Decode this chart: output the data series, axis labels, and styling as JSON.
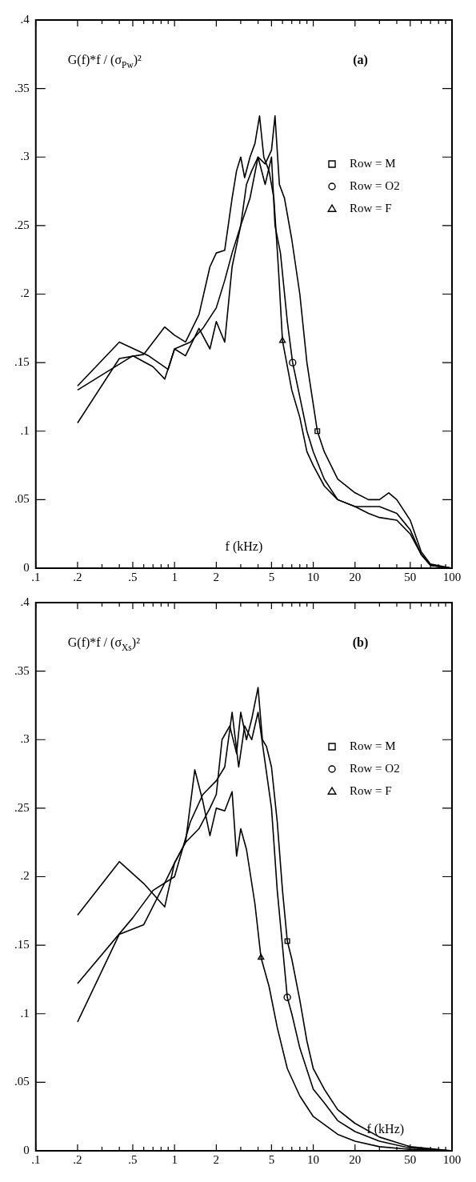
{
  "chart_data": [
    {
      "type": "line",
      "title": "(a)",
      "ylabel": "G(f)*f / (σ$_{Pw}$)²",
      "xlabel": "f (kHz)",
      "log": "x",
      "grid": false,
      "legend": "top right",
      "xlim": [
        0.1,
        100
      ],
      "ylim": [
        0,
        0.4
      ],
      "xticks": [
        {
          "value": 0.1,
          "label": ".1"
        },
        {
          "value": 0.2,
          "label": ".2"
        },
        {
          "value": 0.3,
          "label": null
        },
        {
          "value": 0.4,
          "label": null
        },
        {
          "value": 0.5,
          "label": ".5"
        },
        {
          "value": 0.6,
          "label": null
        },
        {
          "value": 0.7,
          "label": null
        },
        {
          "value": 0.8,
          "label": null
        },
        {
          "value": 0.9,
          "label": null
        },
        1,
        2,
        {
          "value": 3,
          "label": null
        },
        {
          "value": 4,
          "label": null
        },
        5,
        {
          "value": 6,
          "label": null
        },
        {
          "value": 7,
          "label": null
        },
        {
          "value": 8,
          "label": null
        },
        {
          "value": 9,
          "label": null
        },
        10,
        20,
        {
          "value": 30,
          "label": null
        },
        {
          "value": 40,
          "label": null
        },
        50,
        {
          "value": 60,
          "label": null
        },
        {
          "value": 70,
          "label": null
        },
        {
          "value": 80,
          "label": null
        },
        {
          "value": 90,
          "label": null
        },
        100
      ],
      "yticks": [
        0,
        {
          "value": 0.05,
          "label": ".05"
        },
        {
          "value": 0.1,
          "label": ".1"
        },
        {
          "value": 0.15,
          "label": ".15"
        },
        {
          "value": 0.2,
          "label": ".2"
        },
        {
          "value": 0.25,
          "label": ".25"
        },
        {
          "value": 0.3,
          "label": ".3"
        },
        {
          "value": 0.35,
          "label": ".35"
        },
        {
          "value": 0.4,
          "label": ".4"
        }
      ],
      "series": [
        {
          "type": "line",
          "color": "#000000",
          "x": [
            0.2,
            0.4,
            0.65,
            0.9,
            1.0,
            1.2,
            1.5,
            1.8,
            2.0,
            2.3,
            2.6,
            3.0,
            3.3,
            3.6,
            4.0,
            4.5,
            5.0,
            5.3,
            5.7,
            6.2,
            7,
            8,
            9,
            10.7,
            12,
            15,
            20,
            25,
            30,
            35,
            40,
            50,
            60,
            70,
            100
          ],
          "values": [
            0.133,
            0.165,
            0.155,
            0.145,
            0.16,
            0.155,
            0.175,
            0.16,
            0.18,
            0.165,
            0.22,
            0.25,
            0.28,
            0.29,
            0.3,
            0.295,
            0.305,
            0.33,
            0.28,
            0.27,
            0.24,
            0.2,
            0.15,
            0.1,
            0.085,
            0.065,
            0.055,
            0.05,
            0.05,
            0.055,
            0.05,
            0.035,
            0.012,
            0.003,
            0
          ]
        },
        {
          "type": "line",
          "color": "#000000",
          "x": [
            0.2,
            0.5,
            0.7,
            0.85,
            1.0,
            1.3,
            1.6,
            2.0,
            2.3,
            2.6,
            3.0,
            3.5,
            4.0,
            4.5,
            5.0,
            5.3,
            5.8,
            6.5,
            7.1,
            8,
            9,
            10,
            12,
            15,
            20,
            25,
            30,
            40,
            50,
            60,
            70,
            100
          ],
          "values": [
            0.13,
            0.155,
            0.147,
            0.138,
            0.16,
            0.165,
            0.175,
            0.19,
            0.21,
            0.23,
            0.25,
            0.27,
            0.3,
            0.28,
            0.3,
            0.25,
            0.23,
            0.18,
            0.15,
            0.125,
            0.1,
            0.085,
            0.065,
            0.05,
            0.045,
            0.045,
            0.045,
            0.04,
            0.028,
            0.01,
            0.002,
            0
          ]
        },
        {
          "type": "line",
          "color": "#000000",
          "x": [
            0.2,
            0.4,
            0.6,
            0.85,
            1.0,
            1.2,
            1.5,
            1.8,
            2.0,
            2.3,
            2.6,
            2.8,
            3.0,
            3.2,
            3.5,
            3.8,
            4.1,
            4.4,
            4.8,
            5.2,
            5.6,
            6.0,
            7,
            8,
            9,
            10,
            12,
            15,
            20,
            25,
            30,
            40,
            50,
            60,
            70,
            100
          ],
          "values": [
            0.106,
            0.153,
            0.156,
            0.176,
            0.17,
            0.165,
            0.185,
            0.22,
            0.23,
            0.232,
            0.27,
            0.29,
            0.3,
            0.285,
            0.3,
            0.31,
            0.33,
            0.3,
            0.29,
            0.27,
            0.22,
            0.166,
            0.13,
            0.11,
            0.085,
            0.075,
            0.06,
            0.05,
            0.045,
            0.04,
            0.037,
            0.035,
            0.025,
            0.01,
            0.002,
            0
          ]
        },
        {
          "type": "scatter",
          "name": "Row = M",
          "marker": "square",
          "color": "#000000",
          "x": [
            10.7
          ],
          "values": [
            0.1
          ]
        },
        {
          "type": "scatter",
          "name": "Row = O2",
          "marker": "circle",
          "color": "#000000",
          "x": [
            7.1
          ],
          "values": [
            0.15
          ]
        },
        {
          "type": "scatter",
          "name": "Row = F",
          "marker": "triangle",
          "color": "#000000",
          "x": [
            6.0
          ],
          "values": [
            0.166
          ]
        }
      ]
    },
    {
      "type": "line",
      "title": "(b)",
      "ylabel": "G(f)*f / (σ$_{Xs}$)²",
      "xlabel": "f (kHz)",
      "log": "x",
      "grid": false,
      "legend": "top right",
      "xlim": [
        0.1,
        100
      ],
      "ylim": [
        0,
        0.4
      ],
      "xticks": [
        {
          "value": 0.1,
          "label": ".1"
        },
        {
          "value": 0.2,
          "label": ".2"
        },
        {
          "value": 0.3,
          "label": null
        },
        {
          "value": 0.4,
          "label": null
        },
        {
          "value": 0.5,
          "label": ".5"
        },
        {
          "value": 0.6,
          "label": null
        },
        {
          "value": 0.7,
          "label": null
        },
        {
          "value": 0.8,
          "label": null
        },
        {
          "value": 0.9,
          "label": null
        },
        1,
        2,
        {
          "value": 3,
          "label": null
        },
        {
          "value": 4,
          "label": null
        },
        5,
        {
          "value": 6,
          "label": null
        },
        {
          "value": 7,
          "label": null
        },
        {
          "value": 8,
          "label": null
        },
        {
          "value": 9,
          "label": null
        },
        10,
        20,
        {
          "value": 30,
          "label": null
        },
        {
          "value": 40,
          "label": null
        },
        50,
        {
          "value": 60,
          "label": null
        },
        {
          "value": 70,
          "label": null
        },
        {
          "value": 80,
          "label": null
        },
        {
          "value": 90,
          "label": null
        },
        100
      ],
      "yticks": [
        0,
        {
          "value": 0.05,
          "label": ".05"
        },
        {
          "value": 0.1,
          "label": ".1"
        },
        {
          "value": 0.15,
          "label": ".15"
        },
        {
          "value": 0.2,
          "label": ".2"
        },
        {
          "value": 0.25,
          "label": ".25"
        },
        {
          "value": 0.3,
          "label": ".3"
        },
        {
          "value": 0.35,
          "label": ".35"
        },
        {
          "value": 0.4,
          "label": ".4"
        }
      ],
      "series": [
        {
          "type": "line",
          "color": "#000000",
          "x": [
            0.2,
            0.4,
            0.6,
            0.8,
            1.0,
            1.2,
            1.5,
            1.8,
            2.0,
            2.2,
            2.5,
            2.8,
            3.0,
            3.3,
            3.6,
            4.0,
            4.3,
            4.6,
            5.0,
            5.5,
            6.0,
            6.5,
            7,
            8,
            9,
            10,
            12,
            15,
            20,
            30,
            50,
            100
          ],
          "values": [
            0.094,
            0.158,
            0.165,
            0.19,
            0.21,
            0.225,
            0.235,
            0.25,
            0.26,
            0.3,
            0.31,
            0.29,
            0.32,
            0.3,
            0.315,
            0.338,
            0.3,
            0.295,
            0.28,
            0.24,
            0.19,
            0.153,
            0.14,
            0.11,
            0.08,
            0.06,
            0.045,
            0.03,
            0.02,
            0.01,
            0.003,
            0
          ]
        },
        {
          "type": "line",
          "color": "#000000",
          "x": [
            0.2,
            0.5,
            0.7,
            1.0,
            1.3,
            1.6,
            2.0,
            2.3,
            2.6,
            2.9,
            3.2,
            3.6,
            4.0,
            4.4,
            5.0,
            5.5,
            6.5,
            7,
            8,
            10,
            12,
            15,
            20,
            30,
            50,
            100
          ],
          "values": [
            0.122,
            0.17,
            0.19,
            0.2,
            0.24,
            0.26,
            0.27,
            0.28,
            0.32,
            0.28,
            0.31,
            0.3,
            0.32,
            0.29,
            0.25,
            0.19,
            0.112,
            0.1,
            0.075,
            0.045,
            0.035,
            0.022,
            0.014,
            0.007,
            0.002,
            0
          ]
        },
        {
          "type": "line",
          "color": "#000000",
          "x": [
            0.2,
            0.4,
            0.6,
            0.85,
            1.0,
            1.2,
            1.4,
            1.6,
            1.8,
            2.0,
            2.3,
            2.6,
            2.8,
            3.0,
            3.3,
            3.8,
            4.2,
            4.8,
            5.5,
            6.5,
            8,
            10,
            15,
            20,
            30,
            50,
            100
          ],
          "values": [
            0.172,
            0.211,
            0.195,
            0.178,
            0.21,
            0.225,
            0.278,
            0.255,
            0.23,
            0.25,
            0.248,
            0.262,
            0.215,
            0.235,
            0.22,
            0.18,
            0.141,
            0.12,
            0.09,
            0.06,
            0.04,
            0.025,
            0.012,
            0.007,
            0.003,
            0.001,
            0
          ]
        },
        {
          "type": "scatter",
          "name": "Row = M",
          "marker": "square",
          "color": "#000000",
          "x": [
            6.5
          ],
          "values": [
            0.153
          ]
        },
        {
          "type": "scatter",
          "name": "Row = O2",
          "marker": "circle",
          "color": "#000000",
          "x": [
            6.5
          ],
          "values": [
            0.112
          ]
        },
        {
          "type": "scatter",
          "name": "Row = F",
          "marker": "triangle",
          "color": "#000000",
          "x": [
            4.2
          ],
          "values": [
            0.141
          ]
        }
      ]
    }
  ]
}
